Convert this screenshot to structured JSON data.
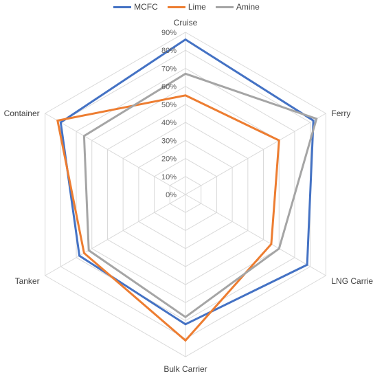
{
  "chart_data": {
    "type": "radar",
    "categories": [
      "Cruise",
      "Ferry",
      "LNG Carrier",
      "Bulk Carrier",
      "Tanker",
      "Container"
    ],
    "series": [
      {
        "name": "MCFC",
        "color": "#4472C4",
        "values": [
          86,
          82,
          78,
          72,
          68,
          80
        ]
      },
      {
        "name": "Lime",
        "color": "#ED7D31",
        "values": [
          55,
          60,
          55,
          81,
          65,
          82
        ]
      },
      {
        "name": "Amine",
        "color": "#A5A5A5",
        "values": [
          67,
          84,
          60,
          68,
          62,
          65
        ]
      }
    ],
    "r_axis": {
      "min": 0,
      "max": 90,
      "step": 10,
      "tick_labels": [
        "0%",
        "10%",
        "20%",
        "30%",
        "40%",
        "50%",
        "60%",
        "70%",
        "80%",
        "90%"
      ]
    },
    "grid": true,
    "legend_position": "top"
  }
}
